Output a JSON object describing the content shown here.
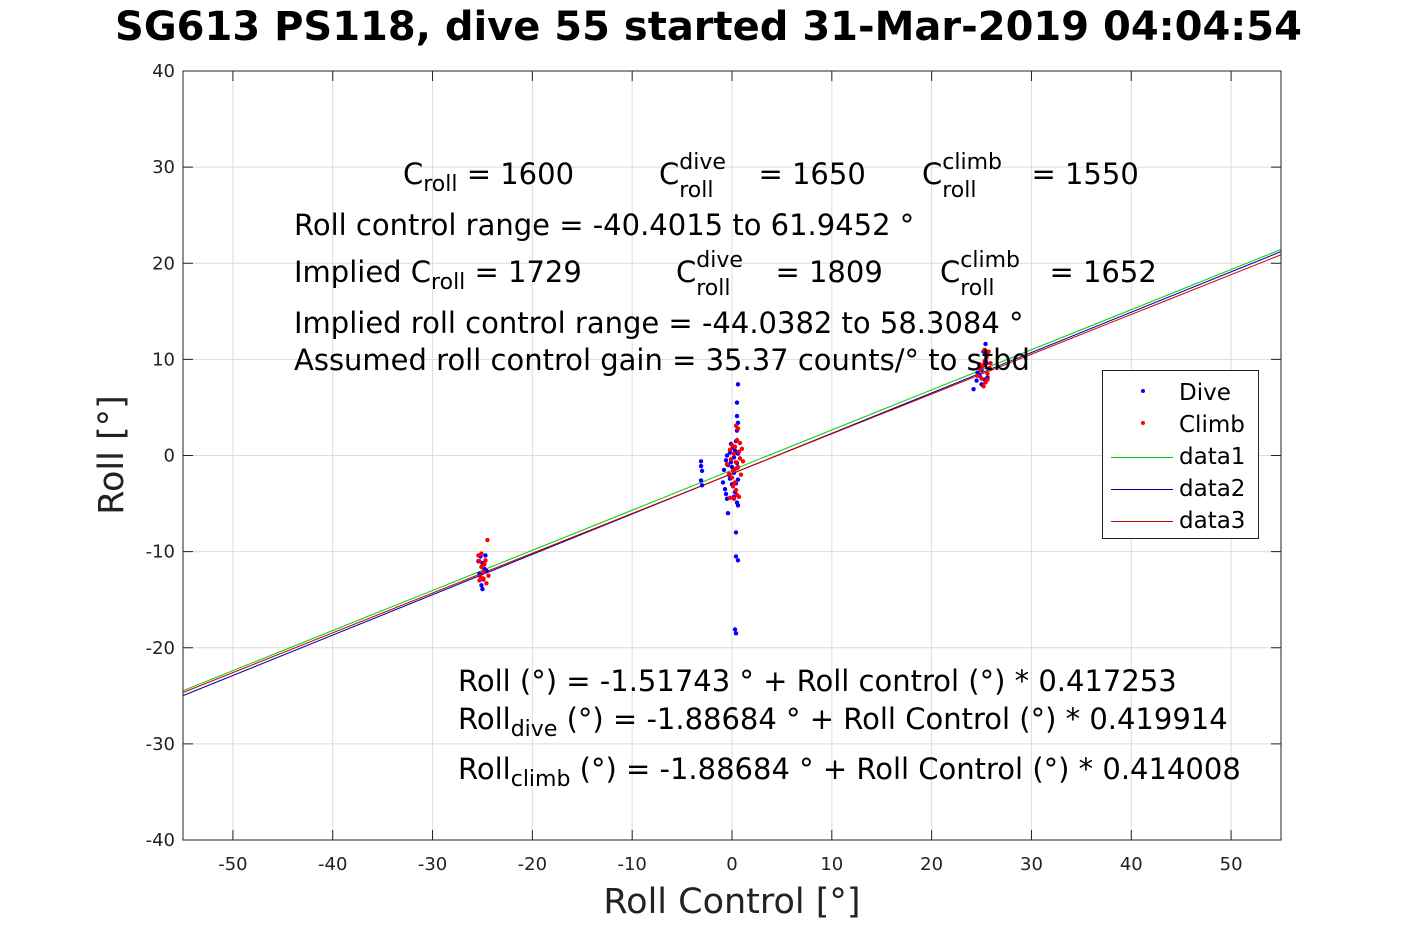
{
  "title": "SG613 PS118, dive 55 started 31-Mar-2019 04:04:54",
  "annotations": {
    "c_roll_line": {
      "c_roll_base": "C",
      "c_roll_sub": "roll",
      "c_roll_val": "= 1600",
      "c_dive_base": "C",
      "c_dive_sup": "dive",
      "c_dive_sub": "roll",
      "c_dive_val": "= 1650",
      "c_climb_base": "C",
      "c_climb_sup": "climb",
      "c_climb_sub": "roll",
      "c_climb_val": "= 1550"
    },
    "range_line": "Roll control range = -40.4015 to 61.9452 °",
    "implied_line": {
      "prefix": "Implied C",
      "prefix_sub": "roll",
      "prefix_val": "= 1729",
      "dive_base": "C",
      "dive_sup": "dive",
      "dive_sub": "roll",
      "dive_val": "= 1809",
      "climb_base": "C",
      "climb_sup": "climb",
      "climb_sub": "roll",
      "climb_val": "= 1652"
    },
    "implied_range_line": "Implied roll control range = -44.0382 to 58.3084 °",
    "gain_line": "Assumed roll control gain = 35.37 counts/° to stbd",
    "fit_all": "Roll (°) = -1.51743 ° + Roll control (°) * 0.417253",
    "fit_dive": {
      "base": "Roll",
      "sub": "dive",
      "rest": " (°) = -1.88684 ° + Roll Control (°) * 0.419914"
    },
    "fit_climb": {
      "base": "Roll",
      "sub": "climb",
      "rest": " (°) = -1.88684 ° + Roll Control (°) * 0.414008"
    }
  },
  "chart_data": {
    "type": "scatter",
    "xlabel": "Roll Control [°]",
    "ylabel": "Roll [°]",
    "xlim": [
      -55,
      55
    ],
    "ylim": [
      -40,
      40
    ],
    "xticks": [
      -50,
      -40,
      -30,
      -20,
      -10,
      0,
      10,
      20,
      30,
      40,
      50
    ],
    "yticks": [
      -40,
      -30,
      -20,
      -10,
      0,
      10,
      20,
      30,
      40
    ],
    "grid": true,
    "legend_position": "right",
    "colors": {
      "Dive": "#0000ff",
      "Climb": "#ff0000",
      "data1": "#00cc00",
      "data2": "#0000aa",
      "data3": "#cc0000"
    },
    "series": [
      {
        "name": "Dive",
        "mode": "markers",
        "points": [
          [
            -25.2,
            -10.5
          ],
          [
            -25.0,
            -11.2
          ],
          [
            -24.8,
            -11.8
          ],
          [
            -25.3,
            -12.3
          ],
          [
            -24.9,
            -12.9
          ],
          [
            -25.1,
            -13.5
          ],
          [
            -24.6,
            -12.0
          ],
          [
            -25.4,
            -11.0
          ],
          [
            -24.7,
            -10.4
          ],
          [
            -25.0,
            -13.9
          ],
          [
            -3.1,
            -0.6
          ],
          [
            -3.0,
            -1.6
          ],
          [
            -3.1,
            -2.6
          ],
          [
            -3.0,
            -3.1
          ],
          [
            -3.1,
            -1.1
          ],
          [
            -0.9,
            -2.8
          ],
          [
            -0.7,
            -3.5
          ],
          [
            -0.6,
            -4.0
          ],
          [
            -0.8,
            -1.5
          ],
          [
            -0.4,
            -1.0
          ],
          [
            -0.5,
            0.0
          ],
          [
            -0.6,
            -0.5
          ],
          [
            -0.3,
            -2.0
          ],
          [
            -0.5,
            -4.5
          ],
          [
            -0.4,
            -6.0
          ],
          [
            -0.2,
            0.3
          ],
          [
            -0.1,
            -0.7
          ],
          [
            0.0,
            -1.2
          ],
          [
            -0.2,
            -2.4
          ],
          [
            0.1,
            0.8
          ],
          [
            -0.1,
            1.2
          ],
          [
            0.0,
            -3.0
          ],
          [
            0.2,
            -0.2
          ],
          [
            0.2,
            -1.8
          ],
          [
            0.3,
            0.5
          ],
          [
            0.4,
            1.5
          ],
          [
            0.5,
            2.6
          ],
          [
            0.4,
            -2.9
          ],
          [
            0.5,
            -1.3
          ],
          [
            0.6,
            0.2
          ],
          [
            0.5,
            -0.8
          ],
          [
            0.3,
            -3.8
          ],
          [
            0.2,
            -4.3
          ],
          [
            0.6,
            3.4
          ],
          [
            0.5,
            4.1
          ],
          [
            0.5,
            5.5
          ],
          [
            0.6,
            7.4
          ],
          [
            0.5,
            -4.9
          ],
          [
            0.6,
            -5.2
          ],
          [
            0.4,
            -8.0
          ],
          [
            0.4,
            -10.5
          ],
          [
            0.6,
            -10.9
          ],
          [
            0.3,
            -18.1
          ],
          [
            0.4,
            -18.5
          ],
          [
            0.6,
            -2.5
          ],
          [
            24.2,
            6.9
          ],
          [
            24.5,
            7.8
          ],
          [
            24.8,
            8.3
          ],
          [
            25.0,
            8.9
          ],
          [
            25.2,
            9.4
          ],
          [
            25.4,
            9.9
          ],
          [
            25.6,
            10.5
          ],
          [
            25.4,
            11.6
          ],
          [
            25.2,
            10.8
          ],
          [
            25.0,
            7.4
          ],
          [
            24.8,
            9.2
          ],
          [
            25.6,
            8.1
          ],
          [
            24.6,
            8.6
          ],
          [
            25.3,
            7.9
          ],
          [
            25.5,
            9.6
          ]
        ]
      },
      {
        "name": "Climb",
        "mode": "markers",
        "points": [
          [
            -25.4,
            -10.4
          ],
          [
            -25.3,
            -11.0
          ],
          [
            -25.1,
            -11.6
          ],
          [
            -24.9,
            -12.1
          ],
          [
            -25.2,
            -12.6
          ],
          [
            -24.6,
            -13.3
          ],
          [
            -24.5,
            -8.8
          ],
          [
            -24.7,
            -10.9
          ],
          [
            -25.0,
            -11.5
          ],
          [
            -24.4,
            -12.5
          ],
          [
            -25.3,
            -13.0
          ],
          [
            -24.8,
            -11.3
          ],
          [
            -25.1,
            -10.2
          ],
          [
            -24.9,
            -12.8
          ],
          [
            -0.5,
            -0.9
          ],
          [
            -0.3,
            -1.9
          ],
          [
            -0.2,
            0.6
          ],
          [
            -0.1,
            -0.4
          ],
          [
            0.0,
            1.1
          ],
          [
            0.1,
            -1.6
          ],
          [
            0.2,
            0.2
          ],
          [
            0.3,
            -2.8
          ],
          [
            0.4,
            -3.6
          ],
          [
            0.5,
            -4.1
          ],
          [
            0.2,
            -4.5
          ],
          [
            0.1,
            -3.2
          ],
          [
            0.0,
            -2.3
          ],
          [
            0.3,
            0.9
          ],
          [
            0.4,
            -0.7
          ],
          [
            0.5,
            1.6
          ],
          [
            0.6,
            -1.2
          ],
          [
            0.7,
            0.4
          ],
          [
            0.8,
            -0.3
          ],
          [
            0.9,
            -2.0
          ],
          [
            1.0,
            0.7
          ],
          [
            0.8,
            1.3
          ],
          [
            0.6,
            2.8
          ],
          [
            0.7,
            -4.3
          ],
          [
            0.4,
            3.1
          ],
          [
            -0.2,
            -4.4
          ],
          [
            0.3,
            -1.4
          ],
          [
            1.1,
            -0.6
          ],
          [
            24.6,
            8.3
          ],
          [
            24.9,
            8.9
          ],
          [
            25.1,
            9.3
          ],
          [
            25.3,
            9.8
          ],
          [
            25.5,
            10.2
          ],
          [
            25.7,
            10.8
          ],
          [
            25.9,
            9.6
          ],
          [
            25.6,
            8.5
          ],
          [
            25.4,
            7.6
          ],
          [
            25.2,
            7.2
          ],
          [
            25.0,
            8.0
          ],
          [
            25.8,
            9.1
          ],
          [
            25.3,
            11.0
          ],
          [
            24.8,
            9.5
          ],
          [
            25.6,
            7.9
          ]
        ]
      },
      {
        "name": "data1",
        "mode": "line",
        "intercept": -1.51743,
        "slope": 0.417253
      },
      {
        "name": "data2",
        "mode": "line",
        "intercept": -1.88684,
        "slope": 0.419914
      },
      {
        "name": "data3",
        "mode": "line",
        "intercept": -1.88684,
        "slope": 0.414008
      }
    ]
  }
}
